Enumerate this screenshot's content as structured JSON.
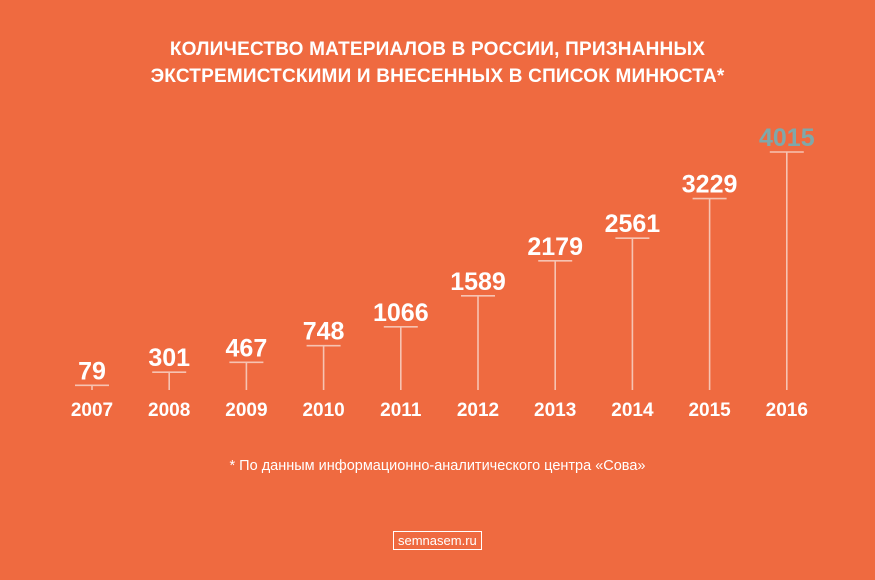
{
  "title_lines": [
    "КОЛИЧЕСТВО МАТЕРИАЛОВ В РОССИИ, ПРИЗНАННЫХ",
    "ЭКСТРЕМИСТСКИМИ И ВНЕСЕННЫХ В СПИСОК МИНЮСТА*"
  ],
  "footnote": "* По данным информационно-аналитического центра «Сова»",
  "brand": "semnasem.ru",
  "colors": {
    "background": "#EF6A40",
    "line": "#F6C3B2",
    "text": "#FFFFFF",
    "highlight": "#7FA8AA"
  },
  "chart_data": {
    "type": "bar",
    "categories": [
      "2007",
      "2008",
      "2009",
      "2010",
      "2011",
      "2012",
      "2013",
      "2014",
      "2015",
      "2016"
    ],
    "values": [
      79,
      301,
      467,
      748,
      1066,
      1589,
      2179,
      2561,
      3229,
      4015
    ],
    "data_labels": [
      "79",
      "301",
      "467",
      "748",
      "1066",
      "1589",
      "2179",
      "2561",
      "3229",
      "4015"
    ],
    "highlight_index": 9,
    "ylim": [
      0,
      4015
    ],
    "grid": false,
    "legend": "none"
  }
}
